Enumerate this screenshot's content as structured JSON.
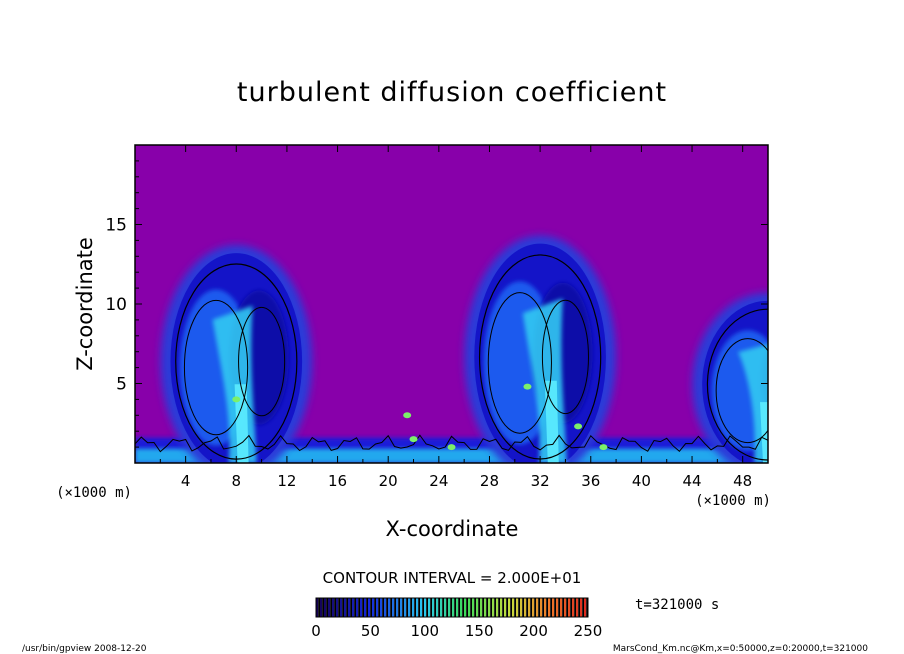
{
  "chart_data": {
    "type": "heatmap",
    "title": "turbulent diffusion coefficient",
    "xlabel": "X-coordinate",
    "ylabel": "Z-coordinate",
    "x_unit": "(×1000 m)",
    "y_unit": "(×1000 m)",
    "xlim": [
      0,
      50
    ],
    "ylim": [
      0,
      20
    ],
    "x_ticks": [
      4,
      8,
      12,
      16,
      20,
      24,
      28,
      32,
      36,
      40,
      44,
      48
    ],
    "y_ticks": [
      5,
      10,
      15
    ],
    "contour_interval_label": "CONTOUR INTERVAL = 2.000E+01",
    "time_label": "t=321000 s",
    "colorbar": {
      "min": 0,
      "max": 250,
      "ticks": [
        0,
        50,
        100,
        150,
        200,
        250
      ]
    },
    "background_color": "#8800aa",
    "plumes": [
      {
        "center_x": 8,
        "top_z": 11,
        "core_x": 8.5
      },
      {
        "center_x": 32,
        "top_z": 11.5,
        "core_x": 33
      },
      {
        "center_x": 50,
        "top_z": 8.5,
        "core_x": 50
      }
    ]
  },
  "footer": {
    "left": "/usr/bin/gpview   2008-12-20",
    "right": "MarsCond_Km.nc@Km,x=0:50000,z=0:20000,t=321000"
  }
}
